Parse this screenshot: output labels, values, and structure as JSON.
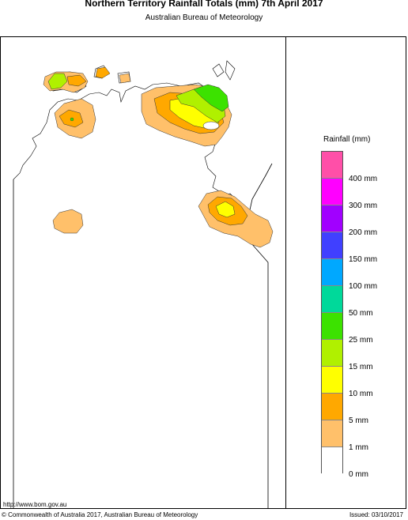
{
  "title": "Northern Territory Rainfall Totals (mm) 7th April 2017",
  "subtitle": "Australian Bureau of Meteorology",
  "legend": {
    "title": "Rainfall (mm)",
    "colors": [
      "#ff4fa8",
      "#ff00ff",
      "#a100ff",
      "#4040ff",
      "#00a8ff",
      "#00d99a",
      "#3ce200",
      "#b0f000",
      "#ffff00",
      "#ffa800",
      "#ffc06a",
      "#ffffff"
    ],
    "labels": [
      "400 mm",
      "300 mm",
      "200 mm",
      "150 mm",
      "100 mm",
      "50 mm",
      "25 mm",
      "15 mm",
      "10 mm",
      "5 mm",
      "1 mm",
      "0 mm"
    ]
  },
  "footer": {
    "url": "http://www.bom.gov.au",
    "copyright": "© Commonwealth of Australia 2017, Australian Bureau of Meteorology",
    "issued": "Issued: 03/10/2017"
  },
  "map_colors": {
    "r1": "#ffc06a",
    "r5": "#ffa800",
    "r10": "#ffff00",
    "r15": "#b0f000",
    "r25": "#3ce200"
  }
}
